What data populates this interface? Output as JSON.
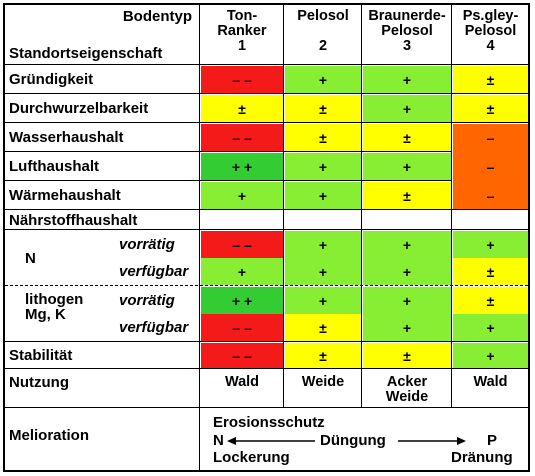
{
  "header": {
    "corner_top": "Bodentyp",
    "corner_bottom": "Standortseigenschaft",
    "columns": [
      {
        "name_line1": "Ton-",
        "name_line2": "Ranker",
        "number": "1"
      },
      {
        "name_line1": "Pelosol",
        "name_line2": "",
        "number": "2"
      },
      {
        "name_line1": "Braunerde-",
        "name_line2": "Pelosol",
        "number": "3"
      },
      {
        "name_line1": "Ps.gley-",
        "name_line2": "Pelosol",
        "number": "4"
      }
    ]
  },
  "rows": {
    "gruendigkeit": {
      "label": "Gründigkeit",
      "values": [
        "– –",
        "+",
        "+",
        "±"
      ]
    },
    "durchwurzelbarkeit": {
      "label": "Durchwurzelbarkeit",
      "values": [
        "±",
        "±",
        "+",
        "±"
      ]
    },
    "wasserhaushalt": {
      "label": "Wasserhaushalt",
      "values": [
        "– –",
        "±",
        "±",
        "–"
      ]
    },
    "lufthaushalt": {
      "label": "Lufthaushalt",
      "values": [
        "+ +",
        "+",
        "+",
        "–"
      ]
    },
    "waermehaushalt": {
      "label": "Wärmehaushalt",
      "values": [
        "+",
        "+",
        "±",
        "–"
      ]
    },
    "naehrstoffhaushalt": {
      "label": "Nährstoffhaushalt"
    },
    "n_vorraetig": {
      "label": "N",
      "sublabel": "vorrätig",
      "values": [
        "– –",
        "+",
        "+",
        "+"
      ]
    },
    "n_verfuegbar": {
      "sublabel": "verfügbar",
      "values": [
        "+",
        "+",
        "+",
        "±"
      ]
    },
    "mg_vorraetig": {
      "label_line1": "lithogen",
      "label_line2": "Mg, K",
      "sublabel": "vorrätig",
      "values": [
        "+ +",
        "+",
        "+",
        "±"
      ]
    },
    "mg_verfuegbar": {
      "sublabel": "verfügbar",
      "values": [
        "– –",
        "±",
        "+",
        "+"
      ]
    },
    "stabilitaet": {
      "label": "Stabilität",
      "values": [
        "– –",
        "±",
        "±",
        "+"
      ]
    }
  },
  "nutzung": {
    "label": "Nutzung",
    "values": [
      [
        "Wald"
      ],
      [
        "Weide"
      ],
      [
        "Acker",
        "Weide"
      ],
      [
        "Wald"
      ]
    ]
  },
  "melioration": {
    "label": "Melioration",
    "line1": "Erosionsschutz",
    "left_end": "N",
    "middle": "Düngung",
    "right_end": "P",
    "left_bottom": "Lockerung",
    "right_bottom": "Dränung"
  },
  "colors": {
    "red": "#f41a1a",
    "green_dark": "#33cc33",
    "green": "#88ee33",
    "yellow": "#ffff00",
    "orange": "#ff6600"
  }
}
